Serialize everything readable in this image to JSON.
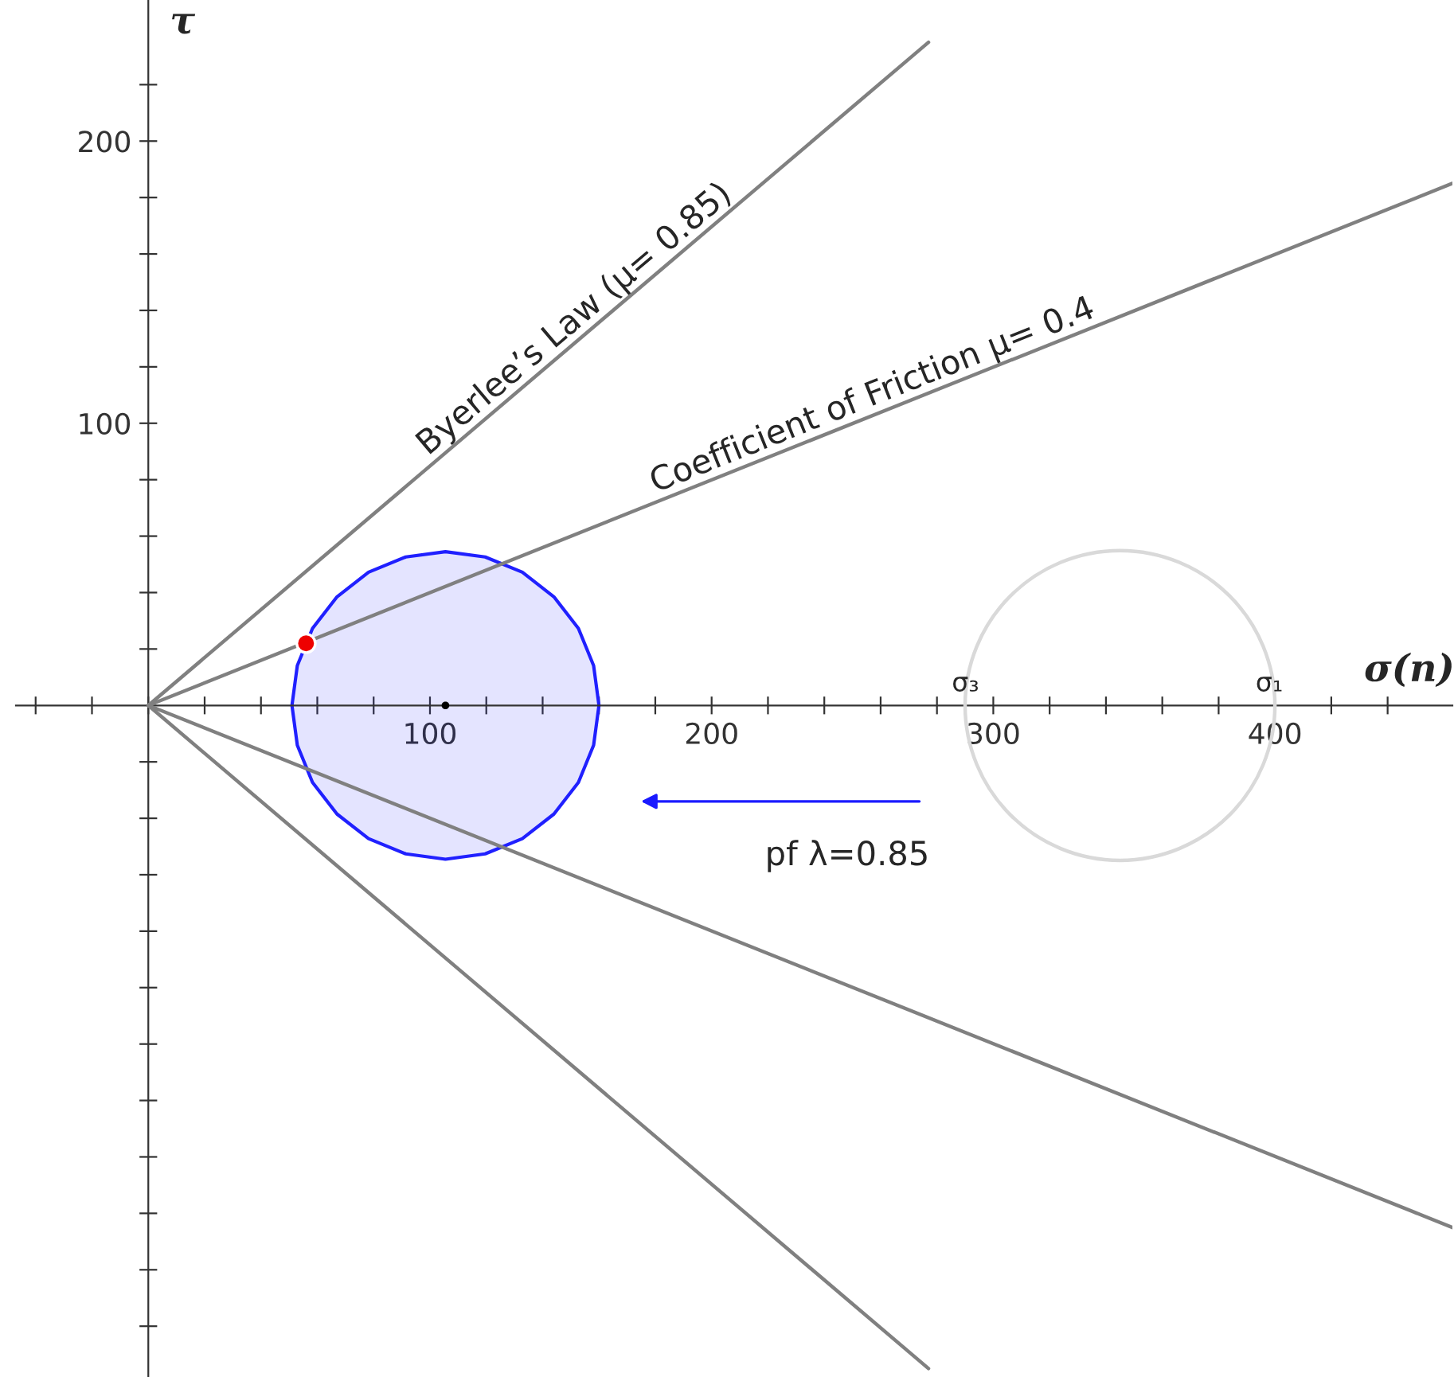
{
  "chart_data": {
    "type": "line",
    "xlabel": "σ(n)",
    "ylabel": "τ",
    "xlim": [
      -47,
      463
    ],
    "ylim": [
      -238,
      250
    ],
    "xticks": [
      {
        "value": -40,
        "label": null
      },
      {
        "value": -20,
        "label": null
      },
      {
        "value": 0,
        "label": null
      },
      {
        "value": 20,
        "label": null
      },
      {
        "value": 40,
        "label": null
      },
      {
        "value": 60,
        "label": null
      },
      {
        "value": 80,
        "label": null
      },
      100,
      {
        "value": 120,
        "label": null
      },
      {
        "value": 140,
        "label": null
      },
      {
        "value": 160,
        "label": null
      },
      {
        "value": 180,
        "label": null
      },
      200,
      {
        "value": 220,
        "label": null
      },
      {
        "value": 240,
        "label": null
      },
      {
        "value": 260,
        "label": null
      },
      {
        "value": 280,
        "label": null
      },
      300,
      {
        "value": 320,
        "label": null
      },
      {
        "value": 340,
        "label": null
      },
      {
        "value": 360,
        "label": null
      },
      {
        "value": 380,
        "label": null
      },
      400,
      {
        "value": 420,
        "label": null
      },
      {
        "value": 440,
        "label": null
      }
    ],
    "yticks": [
      {
        "value": -220,
        "label": null
      },
      {
        "value": -200,
        "label": null
      },
      {
        "value": -180,
        "label": null
      },
      {
        "value": -160,
        "label": null
      },
      {
        "value": -140,
        "label": null
      },
      {
        "value": -120,
        "label": null
      },
      {
        "value": -100,
        "label": null
      },
      {
        "value": -80,
        "label": null
      },
      {
        "value": -60,
        "label": null
      },
      {
        "value": -40,
        "label": null
      },
      {
        "value": -20,
        "label": null
      },
      {
        "value": 20,
        "label": null
      },
      {
        "value": 40,
        "label": null
      },
      {
        "value": 60,
        "label": null
      },
      {
        "value": 80,
        "label": null
      },
      100,
      {
        "value": 120,
        "label": null
      },
      {
        "value": 140,
        "label": null
      },
      {
        "value": 160,
        "label": null
      },
      {
        "value": 180,
        "label": null
      },
      200,
      {
        "value": 220,
        "label": null
      }
    ],
    "grid": false,
    "series": [
      {
        "name": "Byerlee’s Law (μ= 0.85)",
        "color": "#808080",
        "x": [
          0,
          277
        ],
        "values": [
          0,
          235
        ]
      },
      {
        "name": "Coefficient of Friction μ= 0.4",
        "color": "#808080",
        "x": [
          0,
          463
        ],
        "values": [
          0,
          185
        ]
      },
      {
        "color": "#808080",
        "x": [
          0,
          277
        ],
        "values": [
          0,
          -235
        ]
      },
      {
        "color": "#808080",
        "x": [
          0,
          463
        ],
        "values": [
          0,
          -185
        ]
      },
      {
        "type": "area",
        "color": "#2020ff",
        "x": [
          160,
          158.1,
          152.7,
          144,
          132.8,
          119.6,
          105.5,
          91.4,
          78.2,
          67,
          58.3,
          52.9,
          51,
          52.9,
          58.3,
          67,
          78.2,
          91.4,
          105.5,
          119.6,
          132.8,
          144,
          152.7,
          158.1,
          160
        ],
        "values": [
          0,
          14.1,
          27.3,
          38.5,
          47.2,
          52.6,
          54.5,
          52.6,
          47.2,
          38.5,
          27.3,
          14.1,
          0,
          -14.1,
          -27.3,
          -38.5,
          -47.2,
          -52.6,
          -54.5,
          -52.6,
          -47.2,
          -38.5,
          -27.3,
          -14.1,
          0
        ]
      },
      {
        "type": "scatter",
        "color": "#000000",
        "x": [
          105.5
        ],
        "values": [
          0
        ]
      },
      {
        "type": "scatter",
        "color": "#ee0000",
        "x": [
          56
        ],
        "values": [
          22
        ]
      }
    ],
    "annotations": [
      "σ₃",
      "σ₁",
      "pf λ=0.85"
    ]
  }
}
